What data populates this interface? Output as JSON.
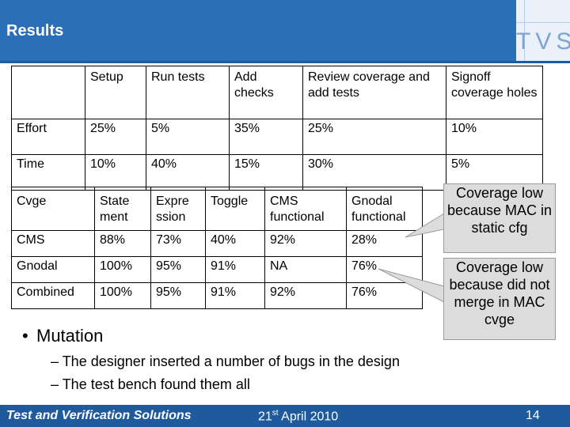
{
  "slide": {
    "title": "Results",
    "logo": "TVS",
    "page_number": "14",
    "footer_left": "Test and Verification Solutions",
    "footer_date_day": "21",
    "footer_date_suffix": "st",
    "footer_date_rest": " April 2010"
  },
  "table_effort": {
    "headers": [
      "",
      "Setup",
      "Run tests",
      "Add checks",
      "Review coverage and add tests",
      "Signoff coverage holes"
    ],
    "rows": [
      [
        "Effort",
        "25%",
        "5%",
        "35%",
        "25%",
        "10%"
      ],
      [
        "Time",
        "10%",
        "40%",
        "15%",
        "30%",
        "5%"
      ]
    ]
  },
  "table_coverage": {
    "headers": [
      "Cvge",
      "State ment",
      "Expre ssion",
      "Toggle",
      "CMS functional",
      "Gnodal functional"
    ],
    "rows": [
      [
        "CMS",
        "88%",
        "73%",
        "40%",
        "92%",
        "28%"
      ],
      [
        "Gnodal",
        "100%",
        "95%",
        "91%",
        "NA",
        "76%"
      ],
      [
        "Combined",
        "100%",
        "95%",
        "91%",
        "92%",
        "76%"
      ]
    ]
  },
  "callouts": {
    "first": "Coverage low because MAC in static cfg",
    "second": "Coverage low because did not merge in MAC cvge"
  },
  "bullets": {
    "main": "Mutation",
    "subs": [
      "The designer inserted a number of bugs in the design",
      "The test bench found them all"
    ]
  }
}
